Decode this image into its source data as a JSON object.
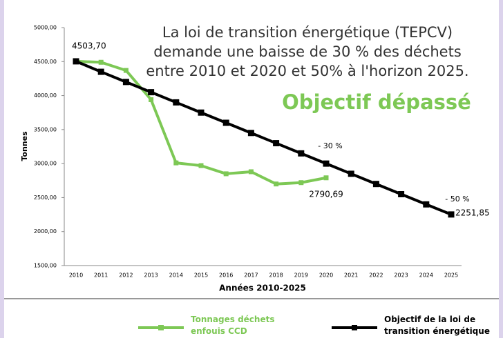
{
  "chart_data": {
    "type": "line",
    "annotation_lines": [
      "La loi de transition énergétique (TEPCV)",
      "demande une baisse de 30 % des déchets",
      "entre 2010 et 2020 et 50% à l'horizon 2025."
    ],
    "highlight": "Objectif dépassé",
    "annotations": [
      "- 30 %",
      "- 50 %"
    ],
    "y_label": "Tonnes",
    "x_label": "Années 2010-2025",
    "categories": [
      "2010",
      "2011",
      "2012",
      "2013",
      "2014",
      "2015",
      "2016",
      "2017",
      "2018",
      "2019",
      "2020",
      "2021",
      "2022",
      "2023",
      "2024",
      "2025"
    ],
    "series": [
      {
        "name": "Tonnages déchets enfouis CCD",
        "color": "#7dc855",
        "values": [
          4503.7,
          4490,
          4370,
          3940,
          3010,
          2970,
          2850,
          2880,
          2700,
          2720,
          2790.69,
          null,
          null,
          null,
          null,
          null
        ],
        "value_labels": [
          "4503,70",
          null,
          null,
          null,
          null,
          null,
          null,
          null,
          null,
          null,
          "2790,69",
          null,
          null,
          null,
          null,
          null
        ]
      },
      {
        "name": "Objectif de la loi de transition énergétique",
        "color": "#000000",
        "values": [
          4503.7,
          4350,
          4200,
          4050,
          3900,
          3750,
          3600,
          3450,
          3300,
          3150,
          3000,
          2850,
          2700,
          2550,
          2400,
          2251.85
        ],
        "value_labels": [
          null,
          null,
          null,
          null,
          null,
          null,
          null,
          null,
          null,
          null,
          null,
          null,
          null,
          null,
          null,
          "2251,85"
        ]
      }
    ],
    "ylim": [
      1500,
      5000
    ],
    "yticks": [
      {
        "value": 1500,
        "label": "1500,00"
      },
      {
        "value": 2000,
        "label": "2000,00"
      },
      {
        "value": 2500,
        "label": "2500,00"
      },
      {
        "value": 3000,
        "label": "3000,00"
      },
      {
        "value": 3500,
        "label": "3500,00"
      },
      {
        "value": 4000,
        "label": "4000,00"
      },
      {
        "value": 4500,
        "label": "4500,00"
      },
      {
        "value": 5000,
        "label": "5000,00"
      }
    ],
    "grid": false
  }
}
